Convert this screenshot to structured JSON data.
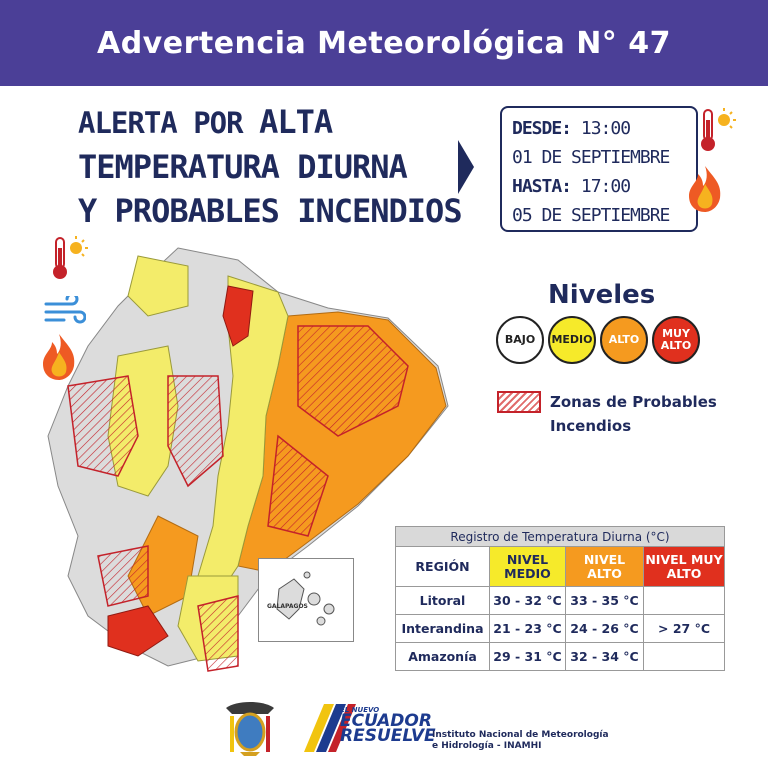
{
  "banner": {
    "title": "Advertencia Meteorológica N° 47"
  },
  "headline": {
    "line1_prefix": "ALERTA POR ",
    "line1_strong": "ALTA",
    "line2": "TEMPERATURA DIURNA",
    "line3": "Y PROBABLES INCENDIOS"
  },
  "period": {
    "desde_label": "DESDE:",
    "desde_time": " 13:00",
    "desde_date": "01 DE SEPTIEMBRE",
    "hasta_label": "HASTA:",
    "hasta_time": " 17:00",
    "hasta_date": "05 DE SEPTIEMBRE"
  },
  "niveles": {
    "title": "Niveles",
    "bajo": "BAJO",
    "medio": "MEDIO",
    "alto": "ALTO",
    "muy_alto": "MUY ALTO"
  },
  "zones_label": "Zonas de Probables Incendios",
  "colors": {
    "banner": "#4b3f97",
    "medio": "#f6ea2a",
    "alto": "#f59a1f",
    "muy_alto": "#e0301e",
    "zone": "#c4222a"
  },
  "map": {
    "inset_label": "GALAPAGOS",
    "icons": [
      "thermometer-sun-icon",
      "wind-icon",
      "fire-icon"
    ]
  },
  "table": {
    "caption": "Registro de Temperatura Diurna (°C)",
    "headers": [
      "REGIÓN",
      "NIVEL MEDIO",
      "NIVEL ALTO",
      "NIVEL MUY ALTO"
    ],
    "rows": [
      {
        "region": "Litoral",
        "medio": "30 - 32 °C",
        "alto": "33 - 35 °C",
        "muy_alto": ""
      },
      {
        "region": "Interandina",
        "medio": "21 - 23 °C",
        "alto": "24 - 26 °C",
        "muy_alto": "> 27 °C"
      },
      {
        "region": "Amazonía",
        "medio": "29 - 31 °C",
        "alto": "32 - 34 °C",
        "muy_alto": ""
      }
    ]
  },
  "footer": {
    "ecuador_small": "EL NUEVO",
    "ecuador_line1": "ECUADOR",
    "ecuador_line2": "RESUELVE",
    "inst_line1": "Instituto Nacional de Meteorología",
    "inst_line2": "e Hidrología - INAMHI"
  }
}
